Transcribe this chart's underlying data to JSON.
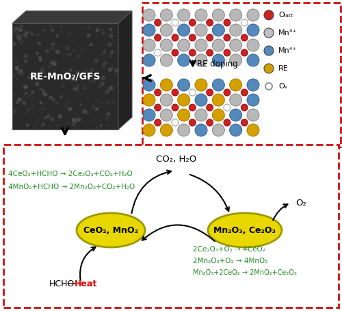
{
  "bg_color": "#ffffff",
  "red_dashed_color": "#cc1111",
  "green_text_color": "#228B22",
  "red_heat_color": "#dd0000",
  "ellipse_face": "#e8d800",
  "ellipse_edge": "#999900",
  "eq_left_1": "4CeO₂+HCHO → 2Ce₂O₃+CO₂+H₂O",
  "eq_left_2": "4MnO₂+HCHO → 2Mn₂O₃+CO₂+H₂O",
  "eq_right_1": "2Ce₂O₃+O₂ → 4CeO₂",
  "eq_right_2": "2Mn₂O₃+O₂ → 4MnO₂",
  "eq_right_3": "Mn₂O₃+2CeO₂ → 2MnO₂+Ce₂O₃",
  "ellipse1_label": "CeO₂, MnO₂",
  "ellipse2_label": "Mn₂O₃, Ce₂O₃",
  "label_co2": "CO₂, H₂O",
  "label_o2": "O₂",
  "label_hcho": "HCHO",
  "label_heat": "Heat",
  "re_doping_label": "RE doping",
  "cube_text": "RE-MnO₂/GFS",
  "leg_labels": [
    "Oₗₐₜₜ",
    "Mn³⁺",
    "Mn⁴⁺",
    "RE",
    "Oᵥ"
  ],
  "leg_colors": [
    "#cc2222",
    "#c0c0c0",
    "#5588bb",
    "#d4a000",
    "#ffffff"
  ],
  "leg_open": [
    false,
    false,
    false,
    false,
    true
  ]
}
